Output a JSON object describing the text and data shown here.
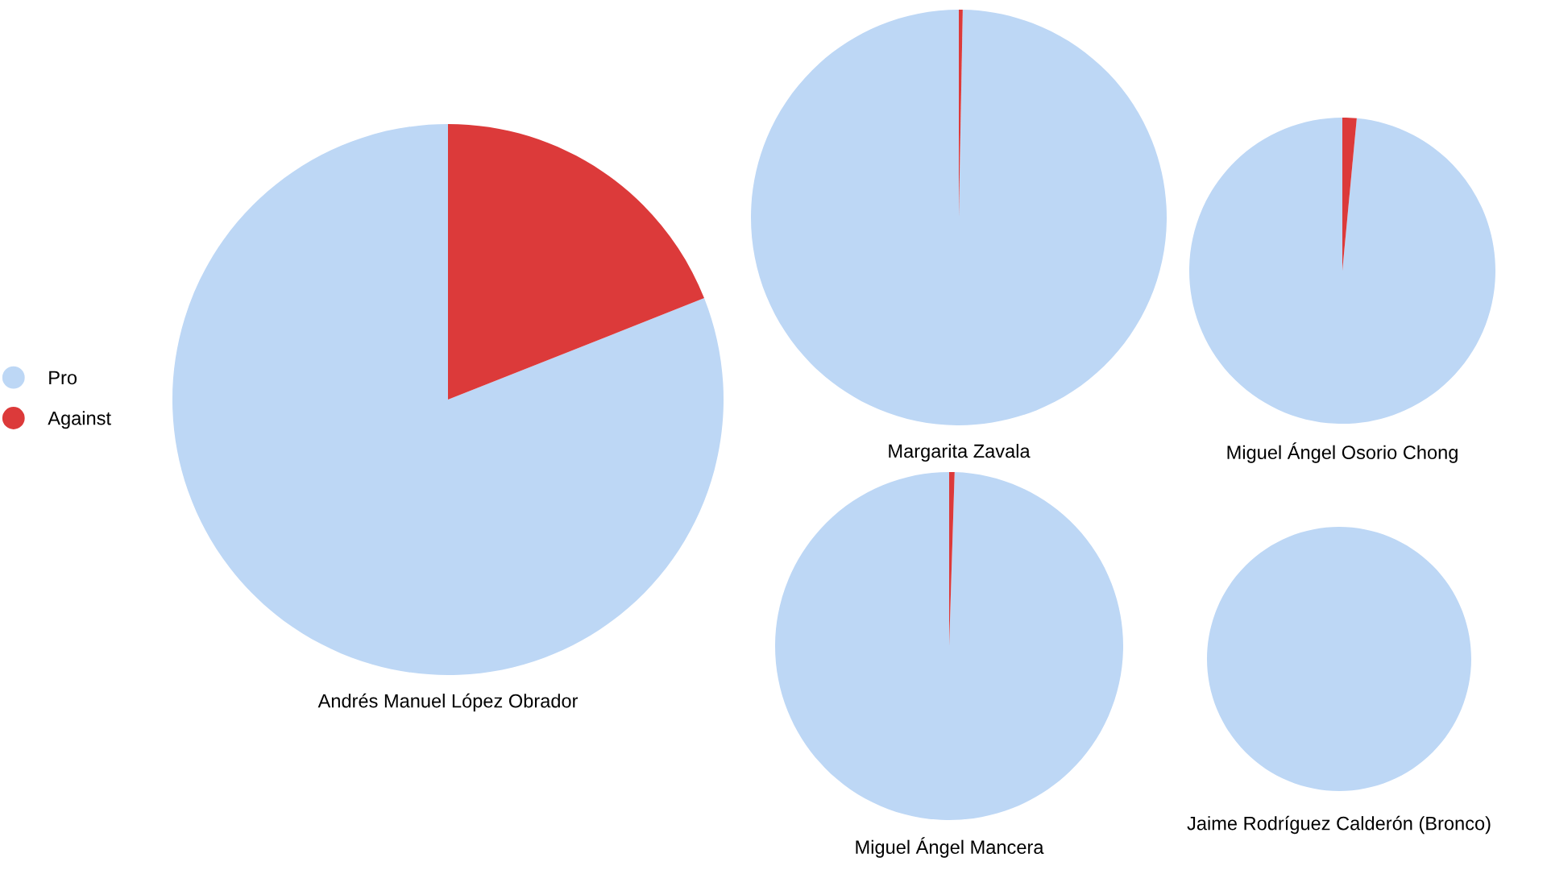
{
  "chart_data": [
    {
      "type": "pie",
      "title": "Andrés Manuel López Obrador",
      "categories": [
        "Pro",
        "Against"
      ],
      "values": [
        81,
        19
      ],
      "colors": [
        "#bdd7f5",
        "#dc3a3a"
      ],
      "legend": "left"
    },
    {
      "type": "pie",
      "title": "Margarita Zavala",
      "categories": [
        null,
        null
      ],
      "values": [
        99.7,
        0.3
      ],
      "colors": [
        "#bdd7f5",
        "#dc3a3a"
      ]
    },
    {
      "type": "pie",
      "title": "Miguel Ángel Osorio Chong",
      "categories": [
        null,
        null
      ],
      "values": [
        98.5,
        1.5
      ],
      "colors": [
        "#bdd7f5",
        "#dc3a3a"
      ]
    },
    {
      "type": "pie",
      "title": "Miguel Ángel Mancera",
      "categories": [
        null,
        null
      ],
      "values": [
        99.5,
        0.5
      ],
      "colors": [
        "#bdd7f5",
        "#dc3a3a"
      ]
    },
    {
      "type": "pie",
      "title": "Jaime Rodríguez Calderón (Bronco)",
      "categories": [
        null,
        null
      ],
      "values": [
        100,
        0
      ],
      "colors": [
        "#bdd7f5",
        "#dc3a3a"
      ]
    }
  ]
}
